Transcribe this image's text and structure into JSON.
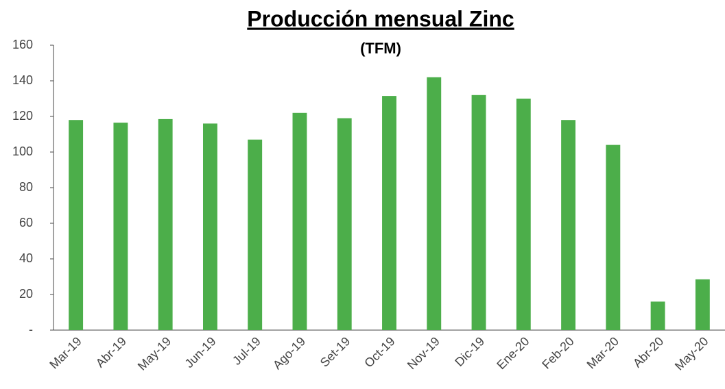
{
  "chart_data": {
    "type": "bar",
    "title": "Producción mensual Zinc",
    "subtitle": "(TFM)",
    "categories": [
      "Mar-19",
      "Abr-19",
      "May-19",
      "Jun-19",
      "Jul-19",
      "Ago-19",
      "Set-19",
      "Oct-19",
      "Nov-19",
      "Dic-19",
      "Ene-20",
      "Feb-20",
      "Mar-20",
      "Abr-20",
      "May-20"
    ],
    "values": [
      118,
      116.5,
      118.5,
      116,
      107,
      122,
      119,
      131.5,
      142,
      132,
      130,
      118,
      104,
      16,
      28.5
    ],
    "color": "#4cae4a",
    "ylim": [
      0,
      160
    ],
    "yticks": [
      {
        "value": 0,
        "label": "-"
      },
      20,
      40,
      60,
      80,
      100,
      120,
      140,
      160
    ],
    "grid": false
  }
}
